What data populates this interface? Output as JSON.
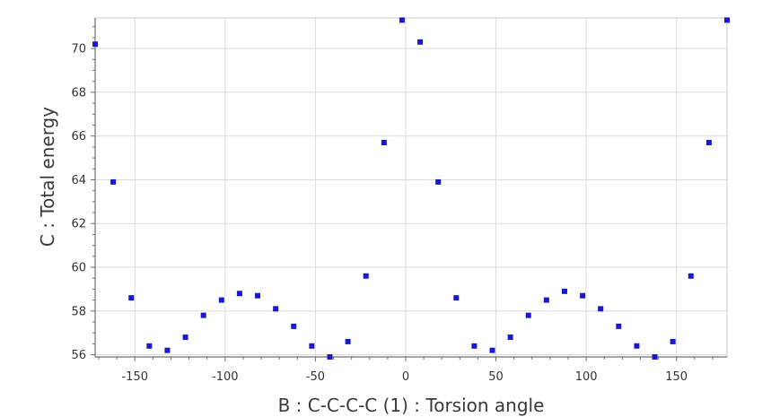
{
  "chart_data": {
    "type": "scatter",
    "title": "",
    "xlabel": "B : C-C-C-C (1) : Torsion angle",
    "ylabel": "C : Total energy",
    "xlim": [
      -172,
      178
    ],
    "ylim": [
      55.9,
      71.4
    ],
    "xticks": [
      -150,
      -100,
      -50,
      0,
      50,
      100,
      150
    ],
    "yticks": [
      56,
      58,
      60,
      62,
      64,
      66,
      68,
      70
    ],
    "grid": true,
    "legend": "none",
    "marker_color": "#1a1acc",
    "series": [
      {
        "name": "Total energy",
        "x": [
          -172,
          -162,
          -152,
          -142,
          -132,
          -122,
          -112,
          -102,
          -92,
          -82,
          -72,
          -62,
          -52,
          -42,
          -32,
          -22,
          -12,
          -2,
          8,
          18,
          28,
          38,
          48,
          58,
          68,
          78,
          88,
          98,
          108,
          118,
          128,
          138,
          148,
          158,
          168,
          178
        ],
        "y": [
          70.2,
          63.9,
          58.6,
          56.4,
          56.2,
          56.8,
          57.8,
          58.5,
          58.8,
          58.7,
          58.1,
          57.3,
          56.4,
          55.9,
          56.6,
          59.6,
          65.7,
          71.3,
          70.3,
          63.9,
          58.6,
          56.4,
          56.2,
          56.8,
          57.8,
          58.5,
          58.9,
          58.7,
          58.1,
          57.3,
          56.4,
          55.9,
          56.6,
          59.6,
          65.7,
          71.3
        ]
      }
    ]
  }
}
